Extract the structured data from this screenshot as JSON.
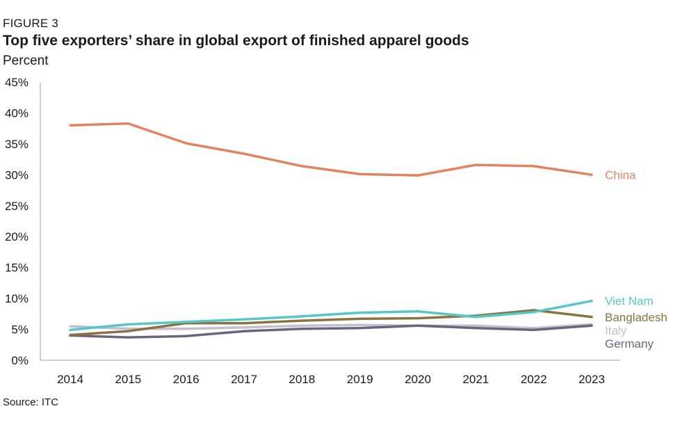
{
  "figure_label": "FIGURE 3",
  "source": "Source: ITC",
  "chart_data": {
    "type": "line",
    "title": "Top five exporters’ share in global export of finished apparel goods",
    "ylabel": "Percent",
    "xlabel": "",
    "ylim": [
      0,
      45
    ],
    "yticks": [
      0,
      5,
      10,
      15,
      20,
      25,
      30,
      35,
      40,
      45
    ],
    "ytick_suffix": "%",
    "categories": [
      "2014",
      "2015",
      "2016",
      "2017",
      "2018",
      "2019",
      "2020",
      "2021",
      "2022",
      "2023"
    ],
    "series": [
      {
        "name": "China",
        "color": "#e4825e",
        "values": [
          38.0,
          38.3,
          35.1,
          33.4,
          31.4,
          30.1,
          29.9,
          31.6,
          31.4,
          30.0
        ]
      },
      {
        "name": "Viet Nam",
        "color": "#56c7c8",
        "values": [
          4.9,
          5.8,
          6.2,
          6.6,
          7.1,
          7.7,
          7.9,
          7.0,
          7.8,
          9.6
        ]
      },
      {
        "name": "Bangladesh",
        "color": "#8a7241",
        "values": [
          4.1,
          4.7,
          6.0,
          6.0,
          6.4,
          6.7,
          6.8,
          7.2,
          8.1,
          7.0
        ]
      },
      {
        "name": "Italy",
        "color": "#c4bfcb",
        "values": [
          5.5,
          5.1,
          5.1,
          5.3,
          5.6,
          5.7,
          5.6,
          5.6,
          5.2,
          5.8
        ]
      },
      {
        "name": "Germany",
        "color": "#6a6480",
        "values": [
          4.0,
          3.7,
          3.9,
          4.7,
          5.1,
          5.2,
          5.6,
          5.2,
          4.9,
          5.6
        ]
      }
    ]
  }
}
